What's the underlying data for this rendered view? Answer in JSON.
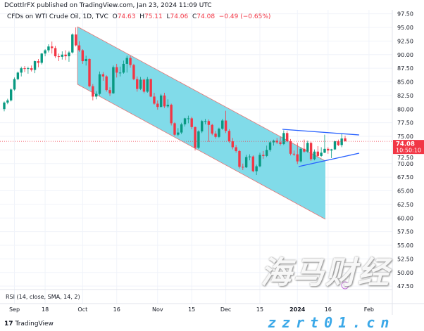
{
  "header": {
    "published": "DCottlrFX published on TradingView.com, Jan 23, 2024 11:09 UTC",
    "symbol": "CFDs on WTI Crude Oil, 1D, TVC",
    "o_label": "O",
    "o": "74.63",
    "h_label": "H",
    "h": "75.11",
    "l_label": "L",
    "l": "74.06",
    "c_label": "C",
    "c": "74.08",
    "change": "−0.49 (−0.65%)"
  },
  "price_tag": {
    "price": "74.08",
    "countdown": "10:50:10"
  },
  "rsi": {
    "label": "RSI (14, close, SMA, 14, 2)"
  },
  "footer": {
    "brand": "TradingView"
  },
  "watermark": {
    "cn": "海马财经",
    "url": "zzrt01.cn"
  },
  "colors": {
    "up": "#089981",
    "down": "#f23645",
    "channel_fill": "#7ad9e8",
    "triangle": "#2962ff",
    "last_price": "#f23645"
  },
  "chart_data": {
    "type": "candlestick",
    "title": "CFDs on WTI Crude Oil, 1D, TVC",
    "ylim": [
      46.25,
      99.0
    ],
    "grid": true,
    "yticks": [
      "97.50",
      "95.00",
      "92.50",
      "90.00",
      "87.50",
      "85.00",
      "82.50",
      "80.00",
      "77.50",
      "75.00",
      "72.50",
      "70.00",
      "67.50",
      "65.00",
      "62.50",
      "60.00",
      "57.50",
      "55.00",
      "52.50",
      "50.00",
      "47.50"
    ],
    "xticks": [
      {
        "label": "Sep",
        "bar": 3
      },
      {
        "label": "18",
        "bar": 12
      },
      {
        "label": "Oct",
        "bar": 23
      },
      {
        "label": "16",
        "bar": 33
      },
      {
        "label": "Nov",
        "bar": 45
      },
      {
        "label": "15",
        "bar": 55
      },
      {
        "label": "Dec",
        "bar": 65
      },
      {
        "label": "15",
        "bar": 75
      },
      {
        "label": "2024",
        "bar": 86
      },
      {
        "label": "16",
        "bar": 95
      },
      {
        "label": "Feb",
        "bar": 107
      }
    ],
    "last_price": 74.08,
    "ohlc": [
      [
        80.0,
        81.4,
        79.6,
        81.2
      ],
      [
        81.2,
        81.9,
        80.9,
        81.6
      ],
      [
        81.6,
        83.8,
        81.4,
        83.6
      ],
      [
        83.6,
        85.8,
        83.4,
        85.5
      ],
      [
        85.5,
        86.9,
        85.3,
        86.7
      ],
      [
        86.7,
        87.8,
        86.0,
        87.5
      ],
      [
        87.5,
        87.9,
        86.8,
        87.4
      ],
      [
        87.4,
        87.8,
        86.5,
        87.5
      ],
      [
        87.5,
        88.0,
        86.9,
        87.2
      ],
      [
        87.2,
        88.9,
        86.6,
        88.8
      ],
      [
        88.8,
        89.2,
        87.7,
        88.5
      ],
      [
        88.5,
        90.3,
        88.2,
        90.2
      ],
      [
        90.2,
        91.0,
        89.7,
        90.8
      ],
      [
        90.8,
        91.9,
        90.4,
        91.5
      ],
      [
        91.5,
        92.4,
        90.2,
        91.2
      ],
      [
        91.2,
        91.6,
        89.4,
        89.7
      ],
      [
        89.7,
        90.2,
        88.8,
        89.6
      ],
      [
        89.6,
        90.6,
        89.1,
        90.0
      ],
      [
        90.0,
        90.8,
        89.0,
        89.7
      ],
      [
        89.7,
        90.7,
        88.7,
        90.4
      ],
      [
        90.4,
        93.9,
        90.2,
        93.7
      ],
      [
        93.7,
        95.0,
        91.5,
        91.7
      ],
      [
        91.7,
        92.5,
        90.5,
        90.8
      ],
      [
        90.8,
        91.0,
        88.3,
        88.8
      ],
      [
        88.8,
        89.8,
        88.0,
        89.2
      ],
      [
        89.2,
        89.3,
        84.0,
        84.2
      ],
      [
        84.2,
        84.6,
        81.6,
        82.3
      ],
      [
        82.3,
        83.3,
        81.8,
        82.8
      ],
      [
        82.8,
        86.9,
        82.5,
        86.4
      ],
      [
        86.4,
        86.8,
        85.2,
        86.0
      ],
      [
        86.0,
        86.2,
        83.2,
        83.5
      ],
      [
        83.5,
        84.0,
        82.4,
        82.9
      ],
      [
        82.9,
        88.0,
        82.8,
        87.7
      ],
      [
        87.7,
        88.3,
        85.8,
        86.7
      ],
      [
        86.7,
        87.8,
        86.0,
        86.7
      ],
      [
        86.7,
        88.9,
        86.5,
        88.3
      ],
      [
        88.3,
        89.8,
        86.7,
        89.4
      ],
      [
        89.4,
        89.8,
        87.6,
        88.1
      ],
      [
        88.1,
        88.3,
        85.3,
        85.5
      ],
      [
        85.5,
        86.0,
        83.2,
        83.7
      ],
      [
        83.7,
        85.9,
        83.5,
        85.4
      ],
      [
        85.4,
        85.6,
        82.9,
        83.2
      ],
      [
        83.2,
        85.9,
        83.0,
        85.5
      ],
      [
        85.5,
        85.6,
        82.2,
        82.3
      ],
      [
        82.3,
        83.0,
        80.8,
        81.0
      ],
      [
        81.0,
        81.6,
        79.9,
        80.4
      ],
      [
        80.4,
        82.8,
        80.3,
        82.5
      ],
      [
        82.5,
        83.0,
        80.2,
        80.5
      ],
      [
        80.5,
        81.8,
        80.2,
        80.8
      ],
      [
        80.8,
        81.0,
        77.0,
        77.4
      ],
      [
        77.4,
        77.6,
        75.1,
        75.3
      ],
      [
        75.3,
        76.5,
        75.0,
        75.7
      ],
      [
        75.7,
        77.5,
        75.4,
        77.2
      ],
      [
        77.2,
        78.4,
        76.8,
        78.3
      ],
      [
        78.3,
        78.8,
        77.4,
        78.3
      ],
      [
        78.3,
        78.6,
        76.3,
        76.7
      ],
      [
        76.7,
        76.8,
        72.4,
        72.9
      ],
      [
        72.9,
        76.1,
        72.7,
        75.9
      ],
      [
        75.9,
        78.0,
        75.6,
        77.8
      ],
      [
        77.8,
        78.2,
        77.2,
        77.8
      ],
      [
        77.8,
        78.1,
        74.0,
        77.1
      ],
      [
        77.1,
        77.3,
        75.2,
        75.5
      ],
      [
        75.5,
        76.0,
        74.6,
        74.9
      ],
      [
        74.9,
        76.6,
        74.7,
        76.4
      ],
      [
        76.4,
        78.2,
        76.2,
        77.9
      ],
      [
        77.9,
        79.7,
        75.6,
        76.0
      ],
      [
        76.0,
        76.3,
        73.8,
        74.1
      ],
      [
        74.1,
        74.7,
        72.6,
        73.0
      ],
      [
        73.0,
        73.4,
        72.0,
        72.3
      ],
      [
        72.3,
        72.5,
        69.1,
        69.4
      ],
      [
        69.4,
        70.0,
        68.8,
        69.3
      ],
      [
        69.3,
        71.6,
        69.2,
        71.2
      ],
      [
        71.2,
        71.7,
        70.6,
        71.3
      ],
      [
        71.3,
        71.5,
        68.4,
        68.6
      ],
      [
        68.6,
        69.8,
        67.9,
        69.5
      ],
      [
        69.5,
        72.0,
        69.3,
        71.6
      ],
      [
        71.6,
        72.3,
        70.9,
        71.4
      ],
      [
        71.4,
        73.3,
        71.2,
        72.5
      ],
      [
        72.5,
        74.1,
        72.2,
        73.9
      ],
      [
        73.9,
        74.4,
        73.3,
        74.2
      ],
      [
        74.2,
        74.7,
        73.6,
        73.9
      ],
      [
        73.9,
        74.9,
        73.3,
        73.6
      ],
      [
        73.6,
        76.1,
        73.4,
        75.6
      ],
      [
        75.6,
        76.0,
        73.9,
        74.1
      ],
      [
        74.1,
        74.5,
        71.5,
        71.8
      ],
      [
        71.8,
        72.4,
        71.4,
        71.7
      ],
      [
        71.7,
        73.8,
        69.9,
        70.4
      ],
      [
        70.4,
        73.0,
        70.2,
        72.7
      ],
      [
        72.7,
        74.4,
        72.0,
        72.2
      ],
      [
        72.2,
        74.2,
        72.0,
        73.8
      ],
      [
        73.8,
        74.0,
        70.5,
        70.8
      ],
      [
        70.8,
        72.6,
        70.6,
        72.2
      ],
      [
        72.2,
        73.2,
        71.1,
        71.4
      ],
      [
        71.4,
        73.0,
        71.2,
        72.0
      ],
      [
        72.0,
        75.3,
        71.9,
        72.7
      ],
      [
        72.7,
        73.0,
        71.8,
        72.4
      ],
      [
        72.4,
        72.7,
        71.0,
        72.6
      ],
      [
        72.6,
        74.2,
        72.5,
        74.1
      ],
      [
        74.1,
        74.4,
        73.2,
        73.4
      ],
      [
        73.4,
        75.5,
        73.0,
        74.6
      ],
      [
        74.63,
        75.11,
        74.06,
        74.08
      ]
    ]
  }
}
